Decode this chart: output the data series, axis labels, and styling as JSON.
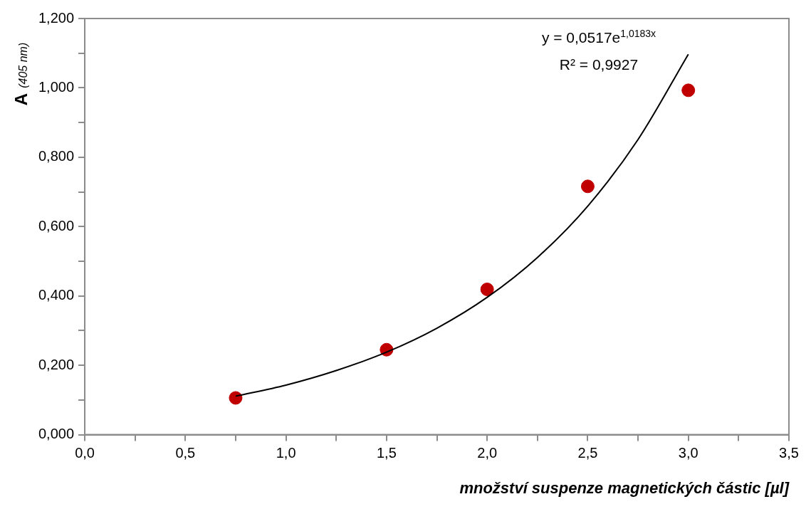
{
  "chart_data": {
    "type": "scatter",
    "xlabel": "množství suspenze magnetických částic [µl]",
    "ylabel": "A$_{(405 nm)}$",
    "series": [
      {
        "type": "scatter",
        "color": "#c00000",
        "marker": "circle",
        "x": [
          0.75,
          1.5,
          2.0,
          2.5,
          3.0
        ],
        "values": [
          0.106,
          0.245,
          0.419,
          0.716,
          0.993
        ]
      },
      {
        "type": "line",
        "color": "#000000",
        "marker": "none",
        "line_style": "solid",
        "x": [
          0.75,
          1.0,
          1.25,
          1.5,
          1.75,
          2.0,
          2.25,
          2.5,
          2.75,
          3.0
        ],
        "values": [
          0.111,
          0.143,
          0.185,
          0.238,
          0.307,
          0.396,
          0.511,
          0.659,
          0.851,
          1.097
        ]
      }
    ],
    "xlim": [
      0,
      3.5
    ],
    "xticks": [
      {
        "value": 0,
        "label": "0,0"
      },
      {
        "value": 0.25,
        "label": null
      },
      {
        "value": 0.5,
        "label": "0,5"
      },
      {
        "value": 0.75,
        "label": null
      },
      {
        "value": 1,
        "label": "1,0"
      },
      {
        "value": 1.25,
        "label": null
      },
      {
        "value": 1.5,
        "label": "1,5"
      },
      {
        "value": 1.75,
        "label": null
      },
      {
        "value": 2,
        "label": "2,0"
      },
      {
        "value": 2.25,
        "label": null
      },
      {
        "value": 2.5,
        "label": "2,5"
      },
      {
        "value": 2.75,
        "label": null
      },
      {
        "value": 3,
        "label": "3,0"
      },
      {
        "value": 3.25,
        "label": null
      },
      {
        "value": 3.5,
        "label": "3,5"
      }
    ],
    "ylim": [
      0,
      1.2
    ],
    "yticks": [
      {
        "value": 0,
        "label": "0,000"
      },
      {
        "value": 0.1,
        "label": null
      },
      {
        "value": 0.2,
        "label": "0,200"
      },
      {
        "value": 0.3,
        "label": null
      },
      {
        "value": 0.4,
        "label": "0,400"
      },
      {
        "value": 0.5,
        "label": null
      },
      {
        "value": 0.6,
        "label": "0,600"
      },
      {
        "value": 0.7,
        "label": null
      },
      {
        "value": 0.8,
        "label": "0,800"
      },
      {
        "value": 0.9,
        "label": null
      },
      {
        "value": 1.0,
        "label": "1,000"
      },
      {
        "value": 1.1,
        "label": null
      },
      {
        "value": 1.2,
        "label": "1,200"
      }
    ],
    "annotations": [
      "y = 0,0517e$^{1,0183x}$",
      "R² = 0,9927"
    ],
    "grid": false,
    "legend": false
  }
}
